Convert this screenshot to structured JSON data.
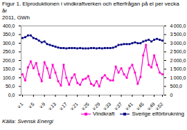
{
  "chart_data": {
    "type": "line",
    "title": "Figur 1. Elproduktionen i vindkraftverken och efterfrågan på el per vecka år\n2011, GWh",
    "caption": "Källa: Svensk Energi",
    "categories": [
      "v.1",
      null,
      null,
      null,
      "v.5",
      null,
      null,
      null,
      "v.9",
      null,
      null,
      null,
      "v.13",
      null,
      null,
      null,
      "v.17",
      null,
      null,
      null,
      "v.21",
      null,
      null,
      null,
      "v.25",
      null,
      null,
      null,
      "v.29",
      null,
      null,
      null,
      "v.33",
      null,
      null,
      null,
      "v.37",
      null,
      null,
      null,
      "v.41",
      null,
      null,
      null,
      "v.45",
      null,
      null,
      null,
      "v.49",
      null,
      null,
      "v.52"
    ],
    "series": [
      {
        "name": "Vindkraft",
        "color": "#FF00CC",
        "marker": "square",
        "values": [
          120,
          85,
          160,
          195,
          155,
          185,
          120,
          80,
          190,
          155,
          100,
          175,
          130,
          80,
          55,
          175,
          100,
          60,
          100,
          120,
          70,
          60,
          90,
          95,
          110,
          65,
          55,
          80,
          50,
          100,
          115,
          95,
          85,
          85,
          165,
          130,
          155,
          120,
          100,
          155,
          175,
          130,
          65,
          105,
          230,
          290,
          175,
          160,
          230,
          175,
          130,
          120
        ]
      },
      {
        "name": "Sverige elförbrukning",
        "color": "#000080",
        "marker": "square",
        "axis": "y2",
        "values": [
          3300,
          3350,
          3450,
          3450,
          3300,
          3250,
          3150,
          3050,
          3100,
          2950,
          2900,
          2850,
          2800,
          2750,
          2720,
          2720,
          2700,
          2720,
          2720,
          2720,
          2700,
          2720,
          2700,
          2700,
          2700,
          2720,
          2720,
          2700,
          2720,
          2700,
          2720,
          2720,
          2720,
          2740,
          2800,
          2900,
          2920,
          2950,
          2950,
          2950,
          3000,
          3050,
          3000,
          3000,
          3100,
          3150,
          3200,
          3100,
          3200,
          3250,
          3200,
          3150
        ]
      }
    ],
    "ylim": [
      0,
      400
    ],
    "yticks": [
      {
        "value": 0,
        "label": "0,0"
      },
      {
        "value": 50,
        "label": "50,0"
      },
      {
        "value": 100,
        "label": "100,0"
      },
      {
        "value": 150,
        "label": "150,0"
      },
      {
        "value": 200,
        "label": "200,0"
      },
      {
        "value": 250,
        "label": "250,0"
      },
      {
        "value": 300,
        "label": "300,0"
      },
      {
        "value": 350,
        "label": "350,0"
      },
      {
        "value": 400,
        "label": "400,0"
      }
    ],
    "y2lim": [
      0,
      4000
    ],
    "y2ticks": [
      0,
      {
        "value": 500,
        "label": "500,0"
      },
      {
        "value": 1000,
        "label": "1 000,0"
      },
      {
        "value": 1500,
        "label": "1 500,0"
      },
      {
        "value": 2000,
        "label": "2 000,0"
      },
      {
        "value": 2500,
        "label": "2 500,0"
      },
      {
        "value": 3000,
        "label": "3 000,0"
      },
      {
        "value": 3500,
        "label": "3 500,0"
      },
      {
        "value": 4000,
        "label": "4 000,0"
      }
    ],
    "grid": false,
    "legend": "lower right"
  }
}
